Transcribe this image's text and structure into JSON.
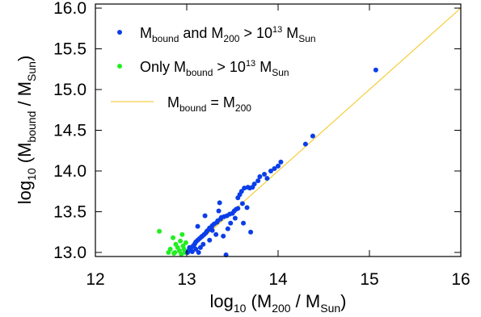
{
  "chart_data": {
    "type": "scatter",
    "title": "",
    "xlabel": {
      "main": "log",
      "sub": "10",
      "rest": " (M",
      "sub2": "200",
      "rest2": " / M",
      "sub3": "Sun",
      "rest3": ")"
    },
    "ylabel": {
      "main": "log",
      "sub": "10",
      "rest": " (M",
      "sub2": "bound",
      "rest2": " / M",
      "sub3": "Sun",
      "rest3": ")"
    },
    "xlim": [
      12,
      16
    ],
    "ylim": [
      12.95,
      16.05
    ],
    "xticks": [
      12,
      13,
      14,
      15,
      16
    ],
    "xtick_labels": [
      "12",
      "13",
      "14",
      "15",
      "16"
    ],
    "yticks": [
      13.0,
      13.5,
      14.0,
      14.5,
      15.0,
      15.5,
      16.0
    ],
    "ytick_labels": [
      "13.0",
      "13.5",
      "14.0",
      "14.5",
      "15.0",
      "15.5",
      "16.0"
    ],
    "grid": false,
    "legend_position": "top-left",
    "colors": {
      "both": "#0b3ee8",
      "only_bound": "#22ee22",
      "line": "#f5c518"
    },
    "series": [
      {
        "name_parts": [
          "M",
          "bound",
          " and M",
          "200",
          " > 10",
          "13",
          " M",
          "Sun"
        ],
        "color": "#0b3ee8",
        "points": [
          [
            15.07,
            15.24
          ],
          [
            14.38,
            14.43
          ],
          [
            14.3,
            14.33
          ],
          [
            14.03,
            14.11
          ],
          [
            14.0,
            14.06
          ],
          [
            13.96,
            14.03
          ],
          [
            13.92,
            14.0
          ],
          [
            13.85,
            13.96
          ],
          [
            13.88,
            13.91
          ],
          [
            13.8,
            13.93
          ],
          [
            13.78,
            13.88
          ],
          [
            13.74,
            13.84
          ],
          [
            13.72,
            13.8
          ],
          [
            13.69,
            13.79
          ],
          [
            13.67,
            13.8
          ],
          [
            13.63,
            13.79
          ],
          [
            13.6,
            13.75
          ],
          [
            13.58,
            13.71
          ],
          [
            13.56,
            13.67
          ],
          [
            13.61,
            13.6
          ],
          [
            13.66,
            13.55
          ],
          [
            13.56,
            13.54
          ],
          [
            13.54,
            13.53
          ],
          [
            13.52,
            13.51
          ],
          [
            13.5,
            13.48
          ],
          [
            13.47,
            13.47
          ],
          [
            13.44,
            13.45
          ],
          [
            13.41,
            13.44
          ],
          [
            13.38,
            13.43
          ],
          [
            13.37,
            13.41
          ],
          [
            13.36,
            13.61
          ],
          [
            13.35,
            13.51
          ],
          [
            13.34,
            13.39
          ],
          [
            13.33,
            13.37
          ],
          [
            13.3,
            13.35
          ],
          [
            13.28,
            13.33
          ],
          [
            13.27,
            13.31
          ],
          [
            13.25,
            13.3
          ],
          [
            13.24,
            13.28
          ],
          [
            13.22,
            13.26
          ],
          [
            13.21,
            13.24
          ],
          [
            13.19,
            13.22
          ],
          [
            13.17,
            13.2
          ],
          [
            13.16,
            13.19
          ],
          [
            13.14,
            13.17
          ],
          [
            13.12,
            13.15
          ],
          [
            13.1,
            13.13
          ],
          [
            13.09,
            13.11
          ],
          [
            13.08,
            13.09
          ],
          [
            13.07,
            13.08
          ],
          [
            13.05,
            13.06
          ],
          [
            13.04,
            13.04
          ],
          [
            13.03,
            13.06
          ],
          [
            13.02,
            13.02
          ],
          [
            13.01,
            13.0
          ],
          [
            13.12,
            13.32
          ],
          [
            13.2,
            13.45
          ],
          [
            13.28,
            13.27
          ],
          [
            13.32,
            13.22
          ],
          [
            13.4,
            13.2
          ],
          [
            13.48,
            13.36
          ],
          [
            13.45,
            13.29
          ],
          [
            13.53,
            13.42
          ],
          [
            13.43,
            12.97
          ],
          [
            13.7,
            13.25
          ],
          [
            13.62,
            13.36
          ],
          [
            13.25,
            13.15
          ],
          [
            13.18,
            13.1
          ],
          [
            13.15,
            13.06
          ],
          [
            13.1,
            13.04
          ],
          [
            13.13,
            13.0
          ],
          [
            13.06,
            13.01
          ]
        ]
      },
      {
        "name_parts": [
          "Only M",
          "bound",
          " > 10",
          "13",
          " M",
          "Sun"
        ],
        "color": "#22ee22",
        "points": [
          [
            12.7,
            13.26
          ],
          [
            12.85,
            13.18
          ],
          [
            12.82,
            13.04
          ],
          [
            12.8,
            13.0
          ],
          [
            12.86,
            12.99
          ],
          [
            12.88,
            13.1
          ],
          [
            12.9,
            13.06
          ],
          [
            12.93,
            13.14
          ],
          [
            12.95,
            13.22
          ],
          [
            12.96,
            13.08
          ],
          [
            12.97,
            13.04
          ],
          [
            12.98,
            13.0
          ],
          [
            12.92,
            13.02
          ],
          [
            12.99,
            13.12
          ],
          [
            12.87,
            13.0
          ],
          [
            12.94,
            12.98
          ]
        ]
      }
    ],
    "reference_line": {
      "name_parts": [
        "M",
        "bound",
        " = M",
        "200"
      ],
      "x": [
        13.0,
        16.0
      ],
      "y": [
        13.0,
        16.0
      ]
    }
  }
}
